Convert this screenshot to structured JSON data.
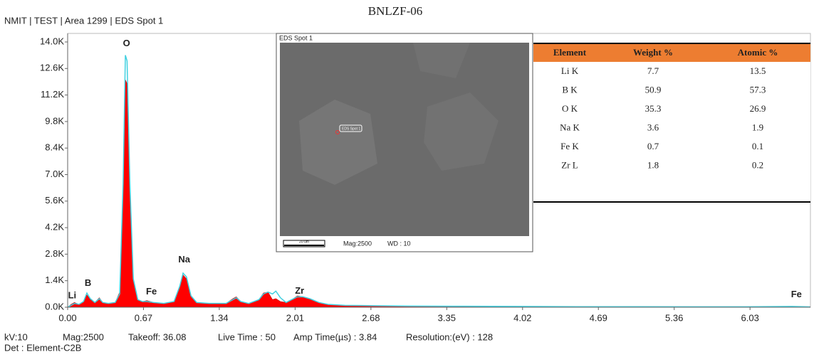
{
  "header": {
    "title": "NMIT | TEST | Area 1299 | EDS Spot 1",
    "sample": "BNLZF-06"
  },
  "chart_data": {
    "type": "spectrum",
    "x": [
      0.0,
      0.03,
      0.06,
      0.1,
      0.14,
      0.17,
      0.2,
      0.24,
      0.28,
      0.31,
      0.36,
      0.42,
      0.46,
      0.49,
      0.51,
      0.525,
      0.55,
      0.58,
      0.62,
      0.66,
      0.7,
      0.76,
      0.85,
      0.94,
      0.99,
      1.02,
      1.05,
      1.09,
      1.14,
      1.25,
      1.4,
      1.46,
      1.49,
      1.53,
      1.6,
      1.69,
      1.73,
      1.77,
      1.81,
      1.84,
      1.88,
      1.93,
      1.98,
      2.03,
      2.08,
      2.14,
      2.22,
      2.3,
      2.45,
      2.7,
      3.0,
      3.5,
      4.0,
      4.5,
      5.0,
      5.5,
      6.0,
      6.4,
      6.56
    ],
    "series": [
      {
        "color": "#ff0000",
        "values": [
          0,
          150,
          250,
          150,
          300,
          650,
          400,
          250,
          500,
          250,
          200,
          250,
          800,
          6000,
          12000,
          11800,
          6000,
          1500,
          400,
          300,
          350,
          250,
          200,
          300,
          1100,
          1700,
          1500,
          600,
          250,
          200,
          200,
          450,
          550,
          300,
          200,
          400,
          750,
          800,
          400,
          450,
          300,
          250,
          400,
          600,
          550,
          450,
          250,
          150,
          100,
          80,
          60,
          50,
          40,
          30,
          30,
          25,
          25,
          40,
          20
        ]
      },
      {
        "color": "#40d0e0",
        "values": [
          0,
          100,
          200,
          150,
          300,
          750,
          450,
          250,
          450,
          250,
          200,
          250,
          700,
          6500,
          13300,
          13000,
          6500,
          1500,
          400,
          300,
          300,
          250,
          200,
          300,
          1100,
          1800,
          1600,
          600,
          250,
          200,
          200,
          400,
          500,
          300,
          200,
          400,
          700,
          800,
          700,
          850,
          500,
          250,
          400,
          550,
          550,
          450,
          250,
          150,
          100,
          80,
          60,
          50,
          40,
          30,
          30,
          25,
          25,
          40,
          20
        ]
      }
    ],
    "peak_labels": [
      {
        "label": "Li",
        "x": 0.04,
        "y": 600
      },
      {
        "label": "B",
        "x": 0.18,
        "y": 1250
      },
      {
        "label": "O",
        "x": 0.52,
        "y": 13900
      },
      {
        "label": "Fe",
        "x": 0.74,
        "y": 800
      },
      {
        "label": "Na",
        "x": 1.03,
        "y": 2500
      },
      {
        "label": "Zr",
        "x": 2.05,
        "y": 850
      },
      {
        "label": "Fe",
        "x": 6.44,
        "y": 650
      }
    ],
    "xlim": [
      0,
      6.56
    ],
    "ylim": [
      0,
      14000
    ],
    "xticks": [
      {
        "value": 0,
        "label": "0.00"
      },
      0.67,
      1.34,
      2.01,
      2.68,
      3.35,
      4.02,
      4.69,
      5.36,
      6.03
    ],
    "yticks": [
      {
        "value": 0,
        "label": "0.0K"
      },
      {
        "value": 1400,
        "label": "1.4K"
      },
      {
        "value": 2800,
        "label": "2.8K"
      },
      {
        "value": 4200,
        "label": "4.2K"
      },
      {
        "value": 5600,
        "label": "5.6K"
      },
      {
        "value": 7000,
        "label": "7.0K"
      },
      {
        "value": 8400,
        "label": "8.4K"
      },
      {
        "value": 9800,
        "label": "9.8K"
      },
      {
        "value": 11200,
        "label": "11.2K"
      },
      {
        "value": 12600,
        "label": "12.6K"
      },
      {
        "value": 14000,
        "label": "14.0K"
      }
    ]
  },
  "inset": {
    "title": "EDS Spot 1",
    "spot_label": "EDS Spot 1",
    "scale_bar": "20 um",
    "mag": "Mag:2500",
    "wd": "WD : 10"
  },
  "table": {
    "header": [
      "Element",
      "Weight %",
      "Atomic %"
    ],
    "rows": [
      [
        "Li K",
        7.7,
        13.5
      ],
      [
        "B K",
        50.9,
        57.3
      ],
      [
        "O K",
        35.3,
        26.9
      ],
      [
        "Na K",
        3.6,
        1.9
      ],
      [
        "Fe K",
        0.7,
        0.1
      ],
      [
        "Zr L",
        1.8,
        0.2
      ]
    ]
  },
  "footer": {
    "line1": [
      "kV:10",
      "Mag:2500",
      "Takeoff: 36.08",
      "Live Time : 50",
      "Amp Time(µs) : 3.84",
      "Resolution:(eV) : 128"
    ],
    "line2": "Det : Element-C2B"
  }
}
